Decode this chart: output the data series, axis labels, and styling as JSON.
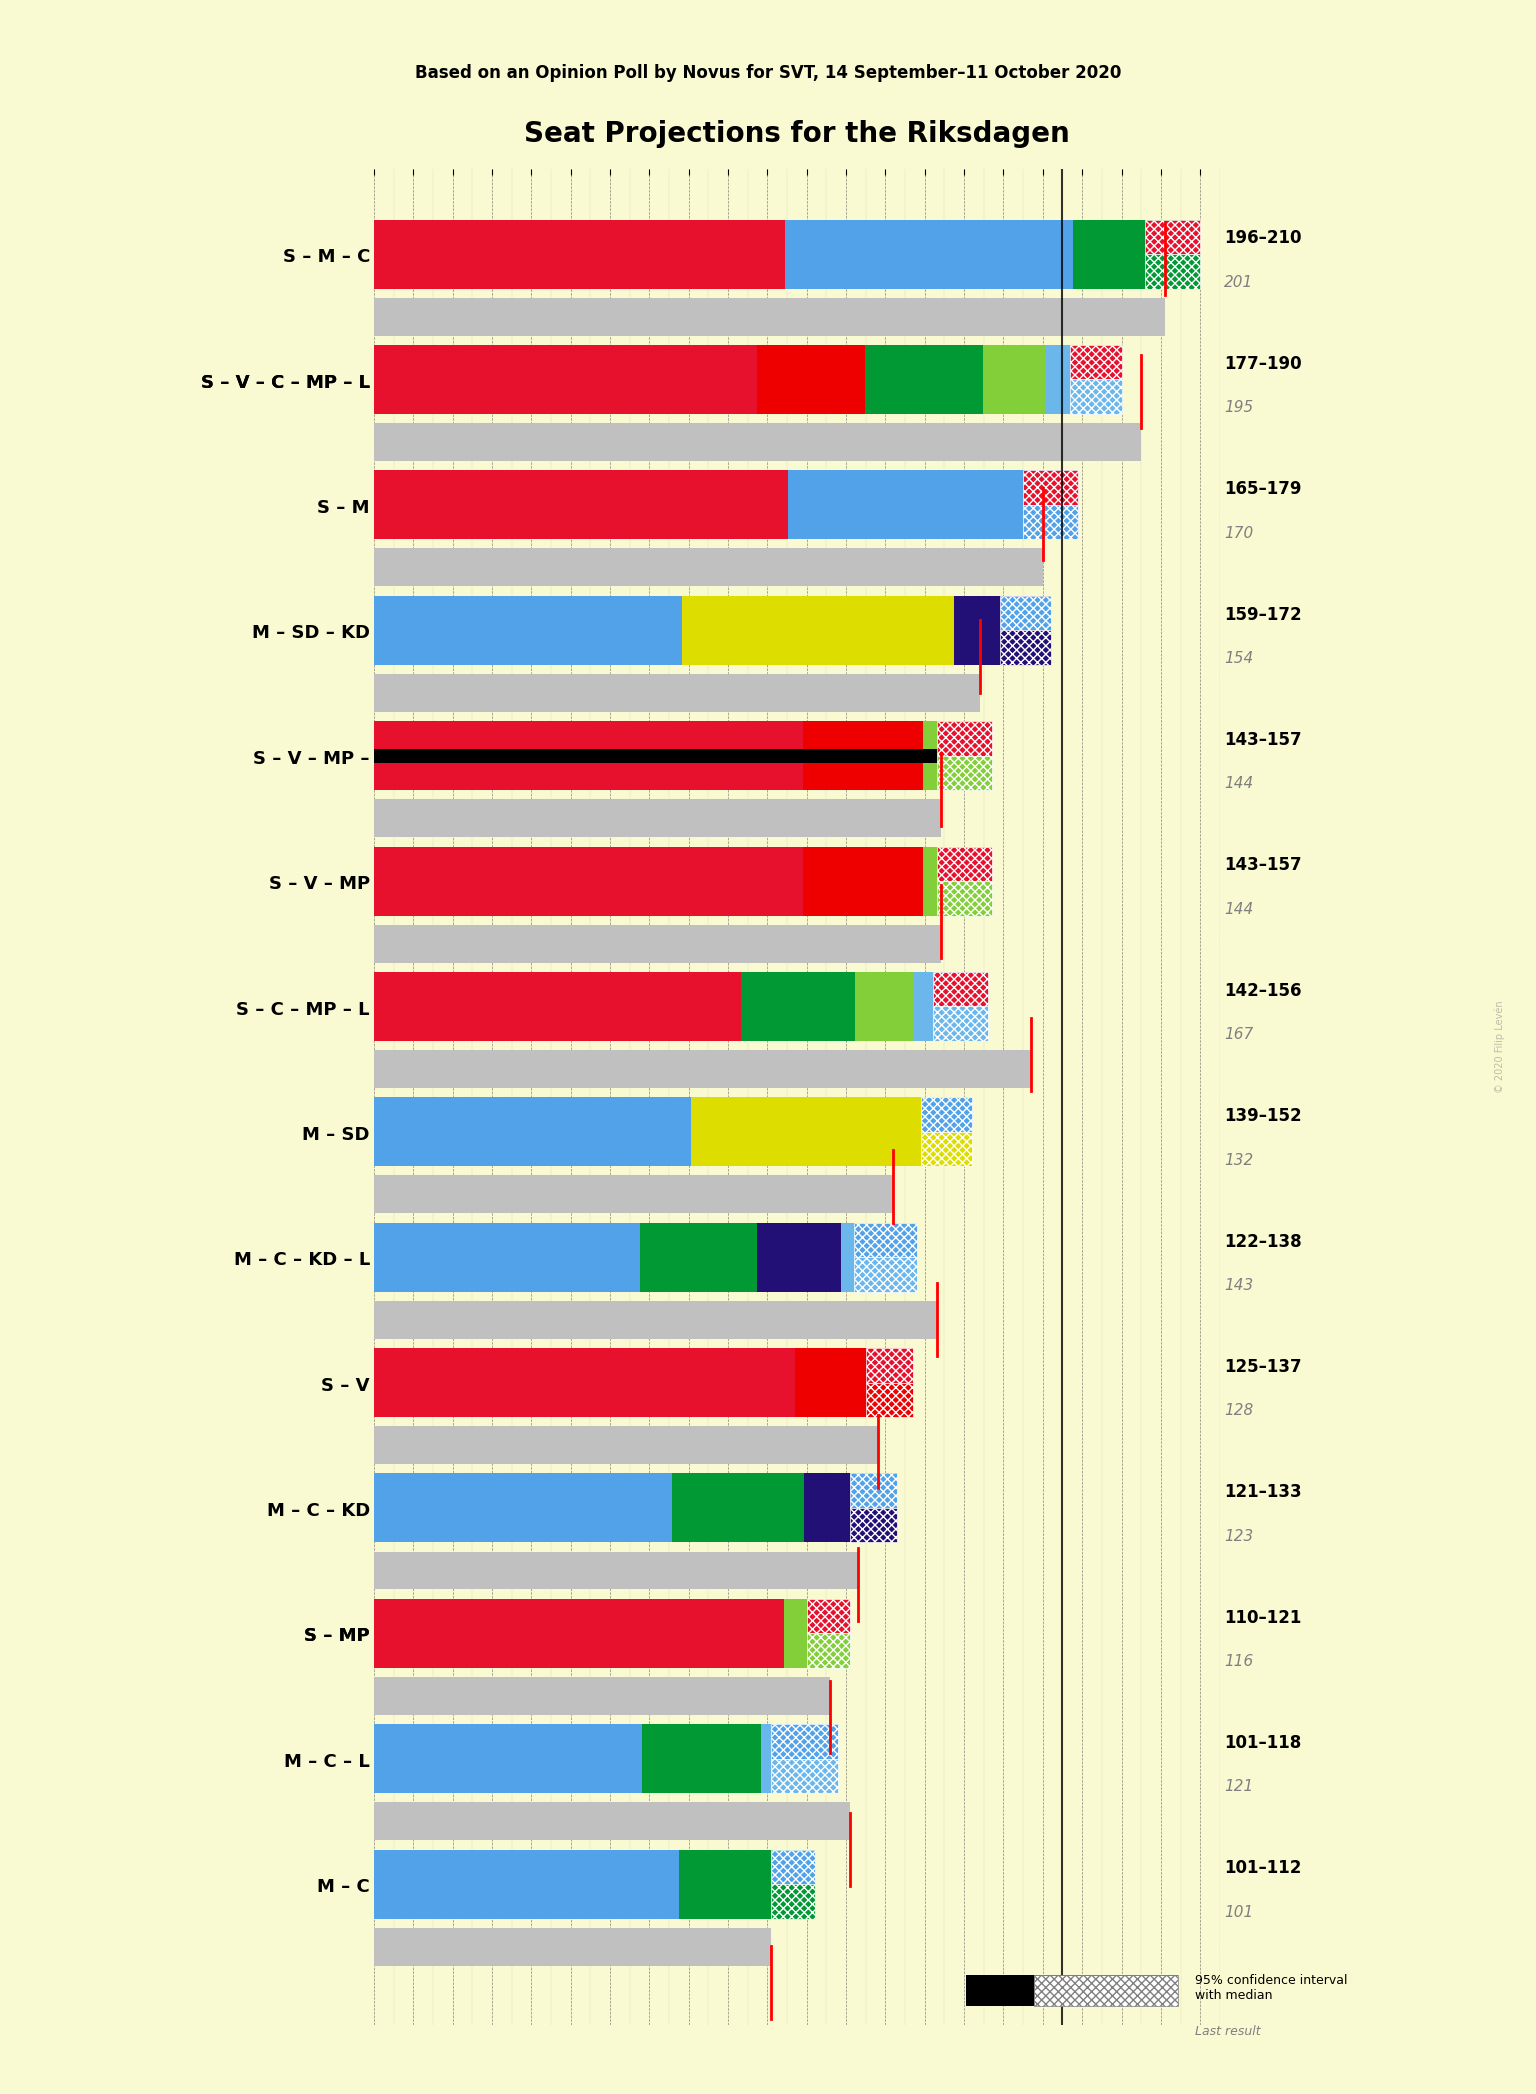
{
  "title": "Seat Projections for the Riksdagen",
  "subtitle": "Based on an Opinion Poll by Novus for SVT, 14 September–11 October 2020",
  "background_color": "#FAFAD2",
  "coalitions": [
    {
      "name": "S – M – C",
      "underline": false,
      "range_low": 196,
      "range_high": 210,
      "median": 201,
      "last_result": 201,
      "parties": [
        {
          "name": "S",
          "seats": 100,
          "color": "#E8112d"
        },
        {
          "name": "M",
          "seats": 70,
          "color": "#52A2E9"
        },
        {
          "name": "C",
          "seats": 31,
          "color": "#009933"
        }
      ]
    },
    {
      "name": "S – V – C – MP – L",
      "underline": true,
      "range_low": 177,
      "range_high": 190,
      "median": 195,
      "last_result": 195,
      "parties": [
        {
          "name": "S",
          "seats": 100,
          "color": "#E8112d"
        },
        {
          "name": "V",
          "seats": 28,
          "color": "#EE0000"
        },
        {
          "name": "C",
          "seats": 31,
          "color": "#009933"
        },
        {
          "name": "MP",
          "seats": 16,
          "color": "#83CF39"
        },
        {
          "name": "L",
          "seats": 20,
          "color": "#6BB7EC"
        }
      ]
    },
    {
      "name": "S – M",
      "underline": false,
      "range_low": 165,
      "range_high": 179,
      "median": 170,
      "last_result": 170,
      "parties": [
        {
          "name": "S",
          "seats": 100,
          "color": "#E8112d"
        },
        {
          "name": "M",
          "seats": 70,
          "color": "#52A2E9"
        }
      ]
    },
    {
      "name": "M – SD – KD",
      "underline": false,
      "range_low": 159,
      "range_high": 172,
      "median": 154,
      "last_result": 154,
      "parties": [
        {
          "name": "M",
          "seats": 70,
          "color": "#52A2E9"
        },
        {
          "name": "SD",
          "seats": 62,
          "color": "#DDDD00"
        },
        {
          "name": "KD",
          "seats": 22,
          "color": "#231077"
        }
      ]
    },
    {
      "name": "S – V – MP –",
      "underline": false,
      "range_low": 143,
      "range_high": 157,
      "median": 144,
      "last_result": 144,
      "black_bar": true,
      "parties": [
        {
          "name": "S",
          "seats": 100,
          "color": "#E8112d"
        },
        {
          "name": "V",
          "seats": 28,
          "color": "#EE0000"
        },
        {
          "name": "MP",
          "seats": 16,
          "color": "#83CF39"
        }
      ]
    },
    {
      "name": "S – V – MP",
      "underline": false,
      "range_low": 143,
      "range_high": 157,
      "median": 144,
      "last_result": 144,
      "parties": [
        {
          "name": "S",
          "seats": 100,
          "color": "#E8112d"
        },
        {
          "name": "V",
          "seats": 28,
          "color": "#EE0000"
        },
        {
          "name": "MP",
          "seats": 16,
          "color": "#83CF39"
        }
      ]
    },
    {
      "name": "S – C – MP – L",
      "underline": false,
      "range_low": 142,
      "range_high": 156,
      "median": 167,
      "last_result": 167,
      "parties": [
        {
          "name": "S",
          "seats": 100,
          "color": "#E8112d"
        },
        {
          "name": "C",
          "seats": 31,
          "color": "#009933"
        },
        {
          "name": "MP",
          "seats": 16,
          "color": "#83CF39"
        },
        {
          "name": "L",
          "seats": 20,
          "color": "#6BB7EC"
        }
      ]
    },
    {
      "name": "M – SD",
      "underline": false,
      "range_low": 139,
      "range_high": 152,
      "median": 132,
      "last_result": 132,
      "parties": [
        {
          "name": "M",
          "seats": 70,
          "color": "#52A2E9"
        },
        {
          "name": "SD",
          "seats": 62,
          "color": "#DDDD00"
        }
      ]
    },
    {
      "name": "M – C – KD – L",
      "underline": false,
      "range_low": 122,
      "range_high": 138,
      "median": 143,
      "last_result": 143,
      "parties": [
        {
          "name": "M",
          "seats": 70,
          "color": "#52A2E9"
        },
        {
          "name": "C",
          "seats": 31,
          "color": "#009933"
        },
        {
          "name": "KD",
          "seats": 22,
          "color": "#231077"
        },
        {
          "name": "L",
          "seats": 20,
          "color": "#6BB7EC"
        }
      ]
    },
    {
      "name": "S – V",
      "underline": false,
      "range_low": 125,
      "range_high": 137,
      "median": 128,
      "last_result": 128,
      "parties": [
        {
          "name": "S",
          "seats": 100,
          "color": "#E8112d"
        },
        {
          "name": "V",
          "seats": 28,
          "color": "#EE0000"
        }
      ]
    },
    {
      "name": "M – C – KD",
      "underline": false,
      "range_low": 121,
      "range_high": 133,
      "median": 123,
      "last_result": 123,
      "parties": [
        {
          "name": "M",
          "seats": 70,
          "color": "#52A2E9"
        },
        {
          "name": "C",
          "seats": 31,
          "color": "#009933"
        },
        {
          "name": "KD",
          "seats": 22,
          "color": "#231077"
        }
      ]
    },
    {
      "name": "S – MP",
      "underline": true,
      "range_low": 110,
      "range_high": 121,
      "median": 116,
      "last_result": 116,
      "parties": [
        {
          "name": "S",
          "seats": 100,
          "color": "#E8112d"
        },
        {
          "name": "MP",
          "seats": 16,
          "color": "#83CF39"
        }
      ]
    },
    {
      "name": "M – C – L",
      "underline": false,
      "range_low": 101,
      "range_high": 118,
      "median": 121,
      "last_result": 121,
      "parties": [
        {
          "name": "M",
          "seats": 70,
          "color": "#52A2E9"
        },
        {
          "name": "C",
          "seats": 31,
          "color": "#009933"
        },
        {
          "name": "L",
          "seats": 20,
          "color": "#6BB7EC"
        }
      ]
    },
    {
      "name": "M – C",
      "underline": false,
      "range_low": 101,
      "range_high": 112,
      "median": 101,
      "last_result": 101,
      "parties": [
        {
          "name": "M",
          "seats": 70,
          "color": "#52A2E9"
        },
        {
          "name": "C",
          "seats": 31,
          "color": "#009933"
        }
      ]
    }
  ],
  "xlim": [
    0,
    215
  ],
  "xlabel": "",
  "party_colors": {
    "S": "#E8112d",
    "M": "#52A2E9",
    "C": "#009933",
    "V": "#EE0000",
    "MP": "#83CF39",
    "L": "#6BB7EC",
    "SD": "#DDDD00",
    "KD": "#231077"
  },
  "majority_line": 175,
  "grid_color": "#888888",
  "label_fontsize": 13,
  "title_fontsize": 20,
  "subtitle_fontsize": 12
}
